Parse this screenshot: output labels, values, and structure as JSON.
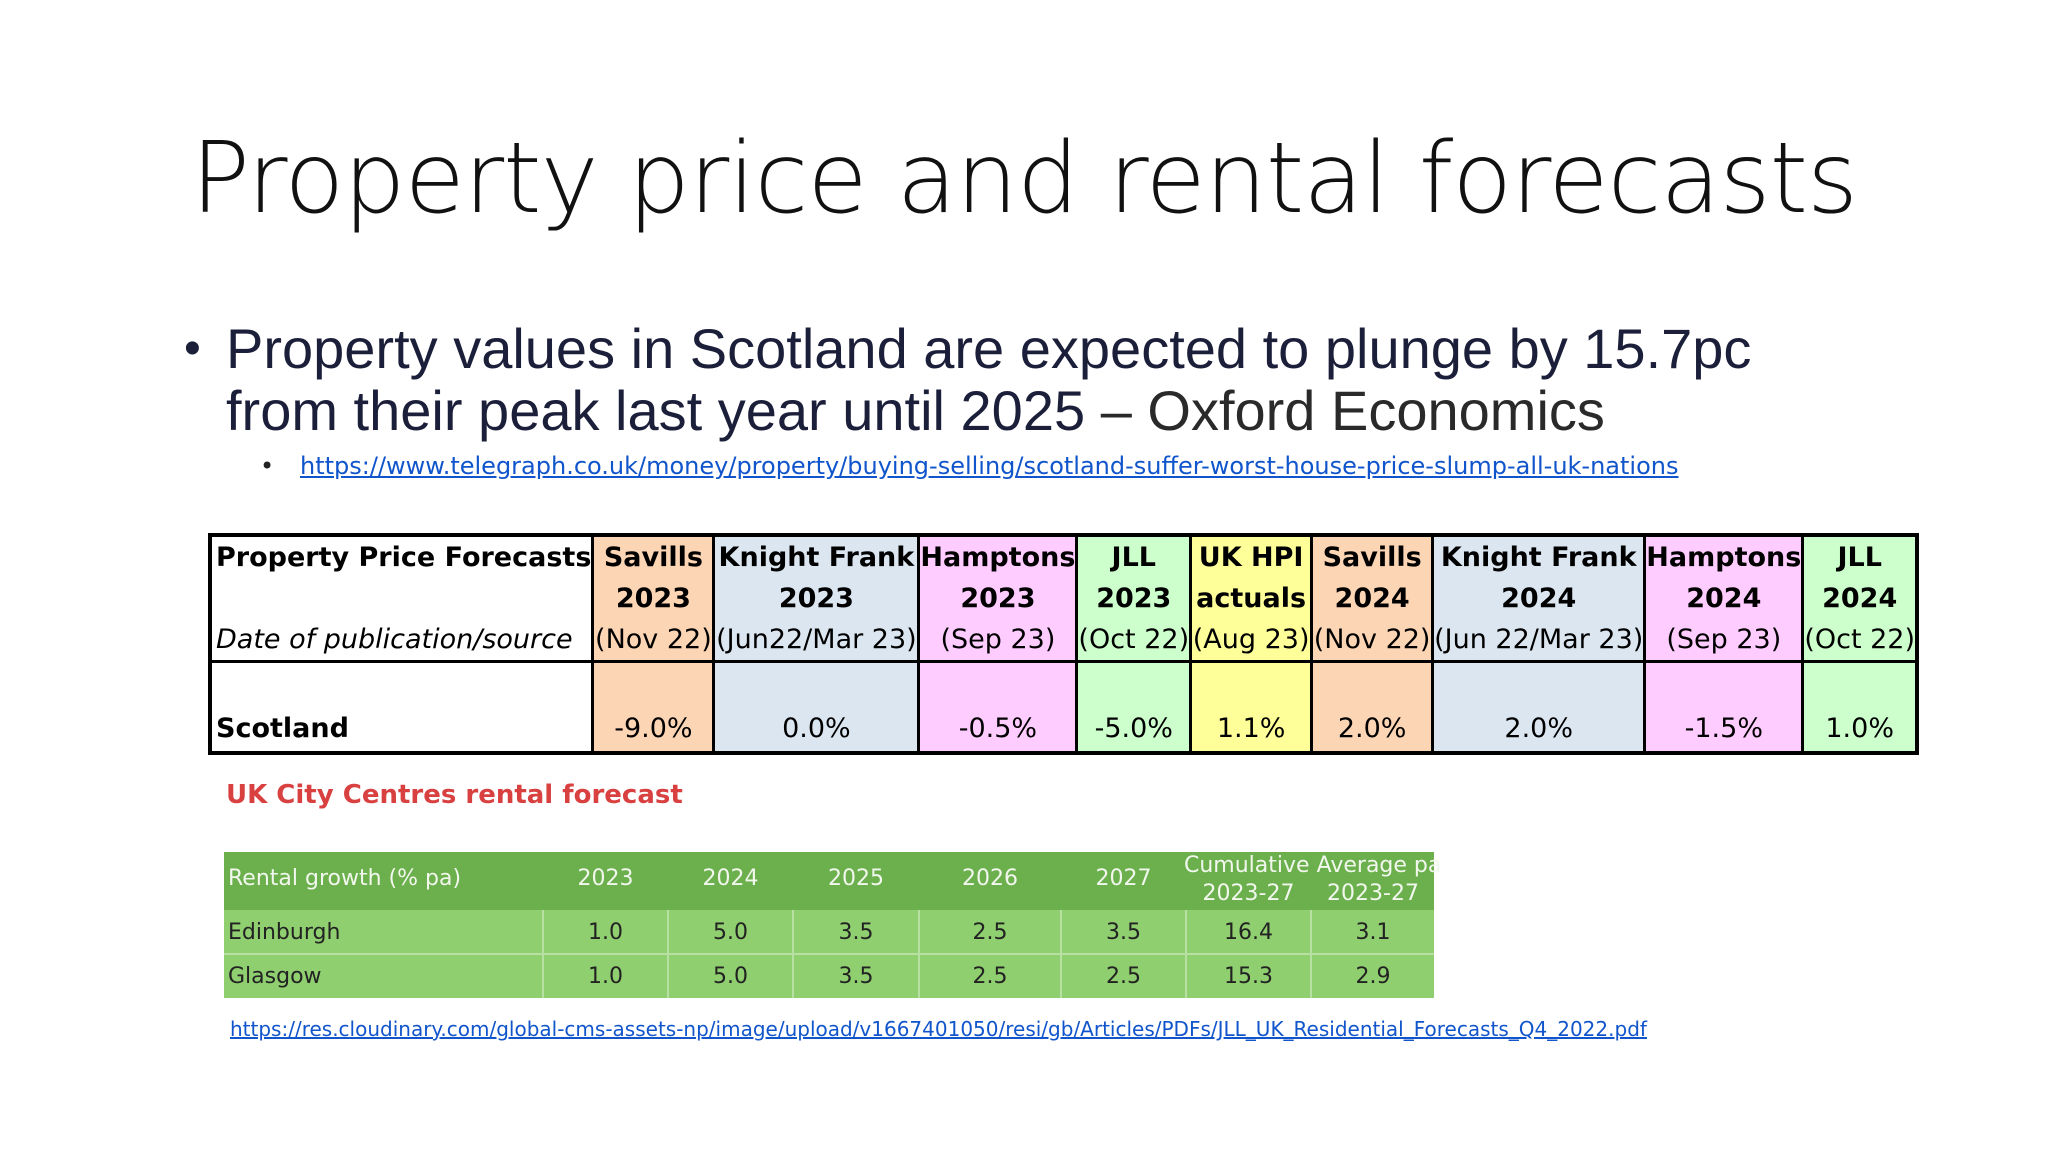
{
  "slide": {
    "title": "Property price and rental forecasts",
    "bullet_main": "Property values in Scotland are expected to plunge by 15.7pc from their peak last year until 2025",
    "bullet_source": "– Oxford Economics",
    "bullet_link": "https://www.telegraph.co.uk/money/property/buying-selling/scotland-suffer-worst-house-price-slump-all-uk-nations"
  },
  "forecast_table": {
    "label_head": "Property Price Forecasts",
    "label_sub": "Date of publication/source",
    "row_label": "Scotland",
    "columns": [
      {
        "name": "Savills",
        "year": "2023",
        "date": "(Nov 22)",
        "value": "-9.0%",
        "color": "#fcd5b4"
      },
      {
        "name": "Knight Frank",
        "year": "2023",
        "date": "(Jun22/Mar 23)",
        "value": "0.0%",
        "color": "#dce6f1"
      },
      {
        "name": "Hamptons",
        "year": "2023",
        "date": "(Sep 23)",
        "value": "-0.5%",
        "color": "#ffccff"
      },
      {
        "name": "JLL",
        "year": "2023",
        "date": "(Oct 22)",
        "value": "-5.0%",
        "color": "#ccffcc"
      },
      {
        "name": "UK HPI",
        "year": "actuals",
        "date": "(Aug 23)",
        "value": "1.1%",
        "color": "#ffff99"
      },
      {
        "name": "Savills",
        "year": "2024",
        "date": "(Nov 22)",
        "value": "2.0%",
        "color": "#fcd5b4"
      },
      {
        "name": "Knight Frank",
        "year": "2024",
        "date": "(Jun 22/Mar 23)",
        "value": "2.0%",
        "color": "#dce6f1"
      },
      {
        "name": "Hamptons",
        "year": "2024",
        "date": "(Sep 23)",
        "value": "-1.5%",
        "color": "#ffccff"
      },
      {
        "name": "JLL",
        "year": "2024",
        "date": "(Oct 22)",
        "value": "1.0%",
        "color": "#ccffcc"
      }
    ]
  },
  "rental": {
    "title": "UK City Centres rental forecast",
    "header": {
      "label": "Rental growth (% pa)",
      "years": [
        "2023",
        "2024",
        "2025",
        "2026",
        "2027"
      ],
      "cumulative": "Cumulative",
      "average": "Average pa",
      "range1": "2023-27",
      "range2": "2023-27"
    },
    "rows": [
      {
        "city": "Edinburgh",
        "values": [
          "1.0",
          "5.0",
          "3.5",
          "2.5",
          "3.5",
          "16.4",
          "3.1"
        ]
      },
      {
        "city": "Glasgow",
        "values": [
          "1.0",
          "5.0",
          "3.5",
          "2.5",
          "2.5",
          "15.3",
          "2.9"
        ]
      }
    ],
    "source_link": "https://res.cloudinary.com/global-cms-assets-np/image/upload/v1667401050/resi/gb/Articles/PDFs/JLL_UK_Residential_Forecasts_Q4_2022.pdf"
  },
  "colors": {
    "savills": "#fcd5b4",
    "knight_frank": "#dce6f1",
    "hamptons": "#ffccff",
    "jll": "#ccffcc",
    "uk_hpi": "#ffff99",
    "rental_header": "#6bb04c",
    "rental_body": "#8fcf6f",
    "rental_title": "#d94040",
    "link": "#1155cc"
  }
}
